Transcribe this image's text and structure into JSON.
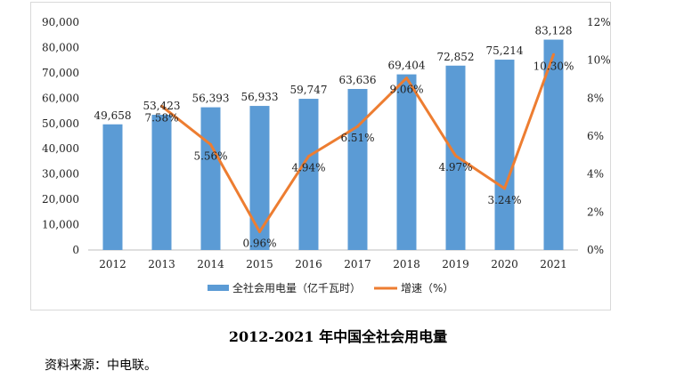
{
  "caption": "2012-2021 年中国全社会用电量",
  "source": "资料来源：中电联。",
  "chart_data": {
    "type": "bar",
    "categories": [
      "2012",
      "2013",
      "2014",
      "2015",
      "2016",
      "2017",
      "2018",
      "2019",
      "2020",
      "2021"
    ],
    "series": [
      {
        "name": "全社会用电量（亿千瓦时）",
        "type": "bar",
        "axis": "left",
        "values": [
          49658,
          53423,
          56393,
          56933,
          59747,
          63636,
          69404,
          72852,
          75214,
          83128
        ],
        "labels": [
          "49,658",
          "53,423",
          "56,393",
          "56,933",
          "59,747",
          "63,636",
          "69,404",
          "72,852",
          "75,214",
          "83,128"
        ],
        "color": "#5b9bd5"
      },
      {
        "name": "增速（%）",
        "type": "line",
        "axis": "right",
        "values": [
          null,
          7.58,
          5.56,
          0.96,
          4.94,
          6.51,
          9.06,
          4.97,
          3.24,
          10.3
        ],
        "labels": [
          "",
          "7.58%",
          "5.56%",
          "0.96%",
          "4.94%",
          "6.51%",
          "9.06%",
          "4.97%",
          "3.24%",
          "10.30%"
        ],
        "color": "#ed7d31"
      }
    ],
    "ylim_left": [
      0,
      90000
    ],
    "ylim_right": [
      0,
      12
    ],
    "yticks_left": [
      "0",
      "10,000",
      "20,000",
      "30,000",
      "40,000",
      "50,000",
      "60,000",
      "70,000",
      "80,000",
      "90,000"
    ],
    "yticks_right": [
      "0%",
      "2%",
      "4%",
      "6%",
      "8%",
      "10%",
      "12%"
    ],
    "legend_position": "bottom",
    "grid": false
  }
}
